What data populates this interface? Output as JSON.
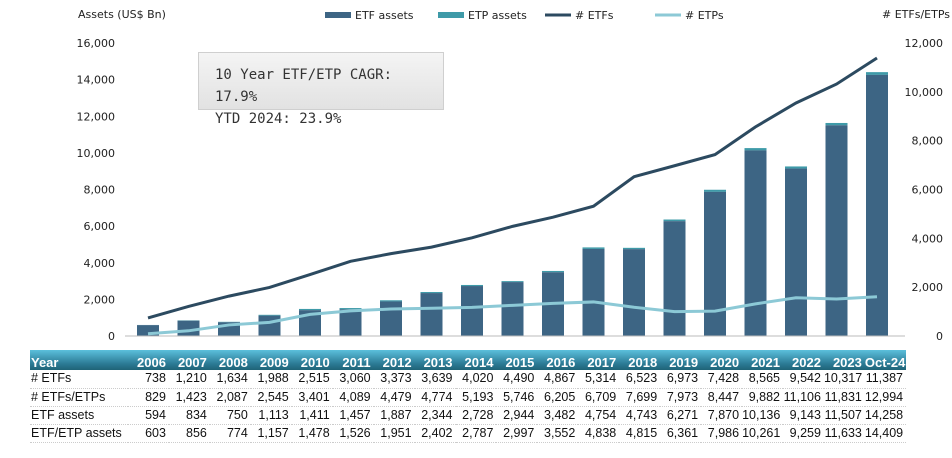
{
  "chart_data": {
    "type": "bar+line",
    "left_axis_label": "Assets (US$ Bn)",
    "right_axis_label": "# ETFs/ETPs",
    "left_ylim": [
      0,
      16000
    ],
    "left_ticks": [
      "0",
      "2,000",
      "4,000",
      "6,000",
      "8,000",
      "10,000",
      "12,000",
      "14,000",
      "16,000"
    ],
    "right_ylim": [
      0,
      12000
    ],
    "right_ticks": [
      "0",
      "2,000",
      "4,000",
      "6,000",
      "8,000",
      "10,000",
      "12,000"
    ],
    "legend": [
      "ETF assets",
      "ETP assets",
      "# ETFs",
      "# ETPs"
    ],
    "legend_placement": "top",
    "colors": {
      "etf_assets": "#3d6584",
      "etp_assets": "#3e9aa8",
      "num_etfs": "#2c4a60",
      "num_etps": "#8cc9d6"
    },
    "categories": [
      "2006",
      "2007",
      "2008",
      "2009",
      "2010",
      "2011",
      "2012",
      "2013",
      "2014",
      "2015",
      "2016",
      "2017",
      "2018",
      "2019",
      "2020",
      "2021",
      "2022",
      "2023",
      "Oct-24"
    ],
    "etf_assets": [
      594,
      834,
      750,
      1113,
      1411,
      1457,
      1887,
      2344,
      2728,
      2944,
      3482,
      4754,
      4743,
      6271,
      7870,
      10136,
      9143,
      11507,
      14258
    ],
    "etf_etp_assets": [
      603,
      856,
      774,
      1157,
      1478,
      1526,
      1951,
      2402,
      2787,
      2997,
      3552,
      4838,
      4815,
      6361,
      7986,
      10261,
      9259,
      11633,
      14409
    ],
    "num_etfs": [
      738,
      1210,
      1634,
      1988,
      2515,
      3060,
      3373,
      3639,
      4020,
      4490,
      4867,
      5314,
      6523,
      6973,
      7428,
      8565,
      9542,
      10317,
      11387
    ],
    "num_etfs_etps": [
      829,
      1423,
      2087,
      2545,
      3401,
      4089,
      4479,
      4774,
      5193,
      5746,
      6205,
      6709,
      7699,
      7973,
      8447,
      9882,
      11106,
      11831,
      12994
    ]
  },
  "annotation": {
    "line1": "10 Year ETF/ETP CAGR: 17.9%",
    "line2": "YTD 2024: 23.9%"
  },
  "table": {
    "header": "Year",
    "rows": [
      {
        "label": "# ETFs",
        "values": [
          "738",
          "1,210",
          "1,634",
          "1,988",
          "2,515",
          "3,060",
          "3,373",
          "3,639",
          "4,020",
          "4,490",
          "4,867",
          "5,314",
          "6,523",
          "6,973",
          "7,428",
          "8,565",
          "9,542",
          "10,317",
          "11,387"
        ]
      },
      {
        "label": "# ETFs/ETPs",
        "values": [
          "829",
          "1,423",
          "2,087",
          "2,545",
          "3,401",
          "4,089",
          "4,479",
          "4,774",
          "5,193",
          "5,746",
          "6,205",
          "6,709",
          "7,699",
          "7,973",
          "8,447",
          "9,882",
          "11,106",
          "11,831",
          "12,994"
        ]
      },
      {
        "label": "ETF assets",
        "values": [
          "594",
          "834",
          "750",
          "1,113",
          "1,411",
          "1,457",
          "1,887",
          "2,344",
          "2,728",
          "2,944",
          "3,482",
          "4,754",
          "4,743",
          "6,271",
          "7,870",
          "10,136",
          "9,143",
          "11,507",
          "14,258"
        ]
      },
      {
        "label": "ETF/ETP assets",
        "values": [
          "603",
          "856",
          "774",
          "1,157",
          "1,478",
          "1,526",
          "1,951",
          "2,402",
          "2,787",
          "2,997",
          "3,552",
          "4,838",
          "4,815",
          "6,361",
          "7,986",
          "10,261",
          "9,259",
          "11,633",
          "14,409"
        ]
      }
    ]
  }
}
